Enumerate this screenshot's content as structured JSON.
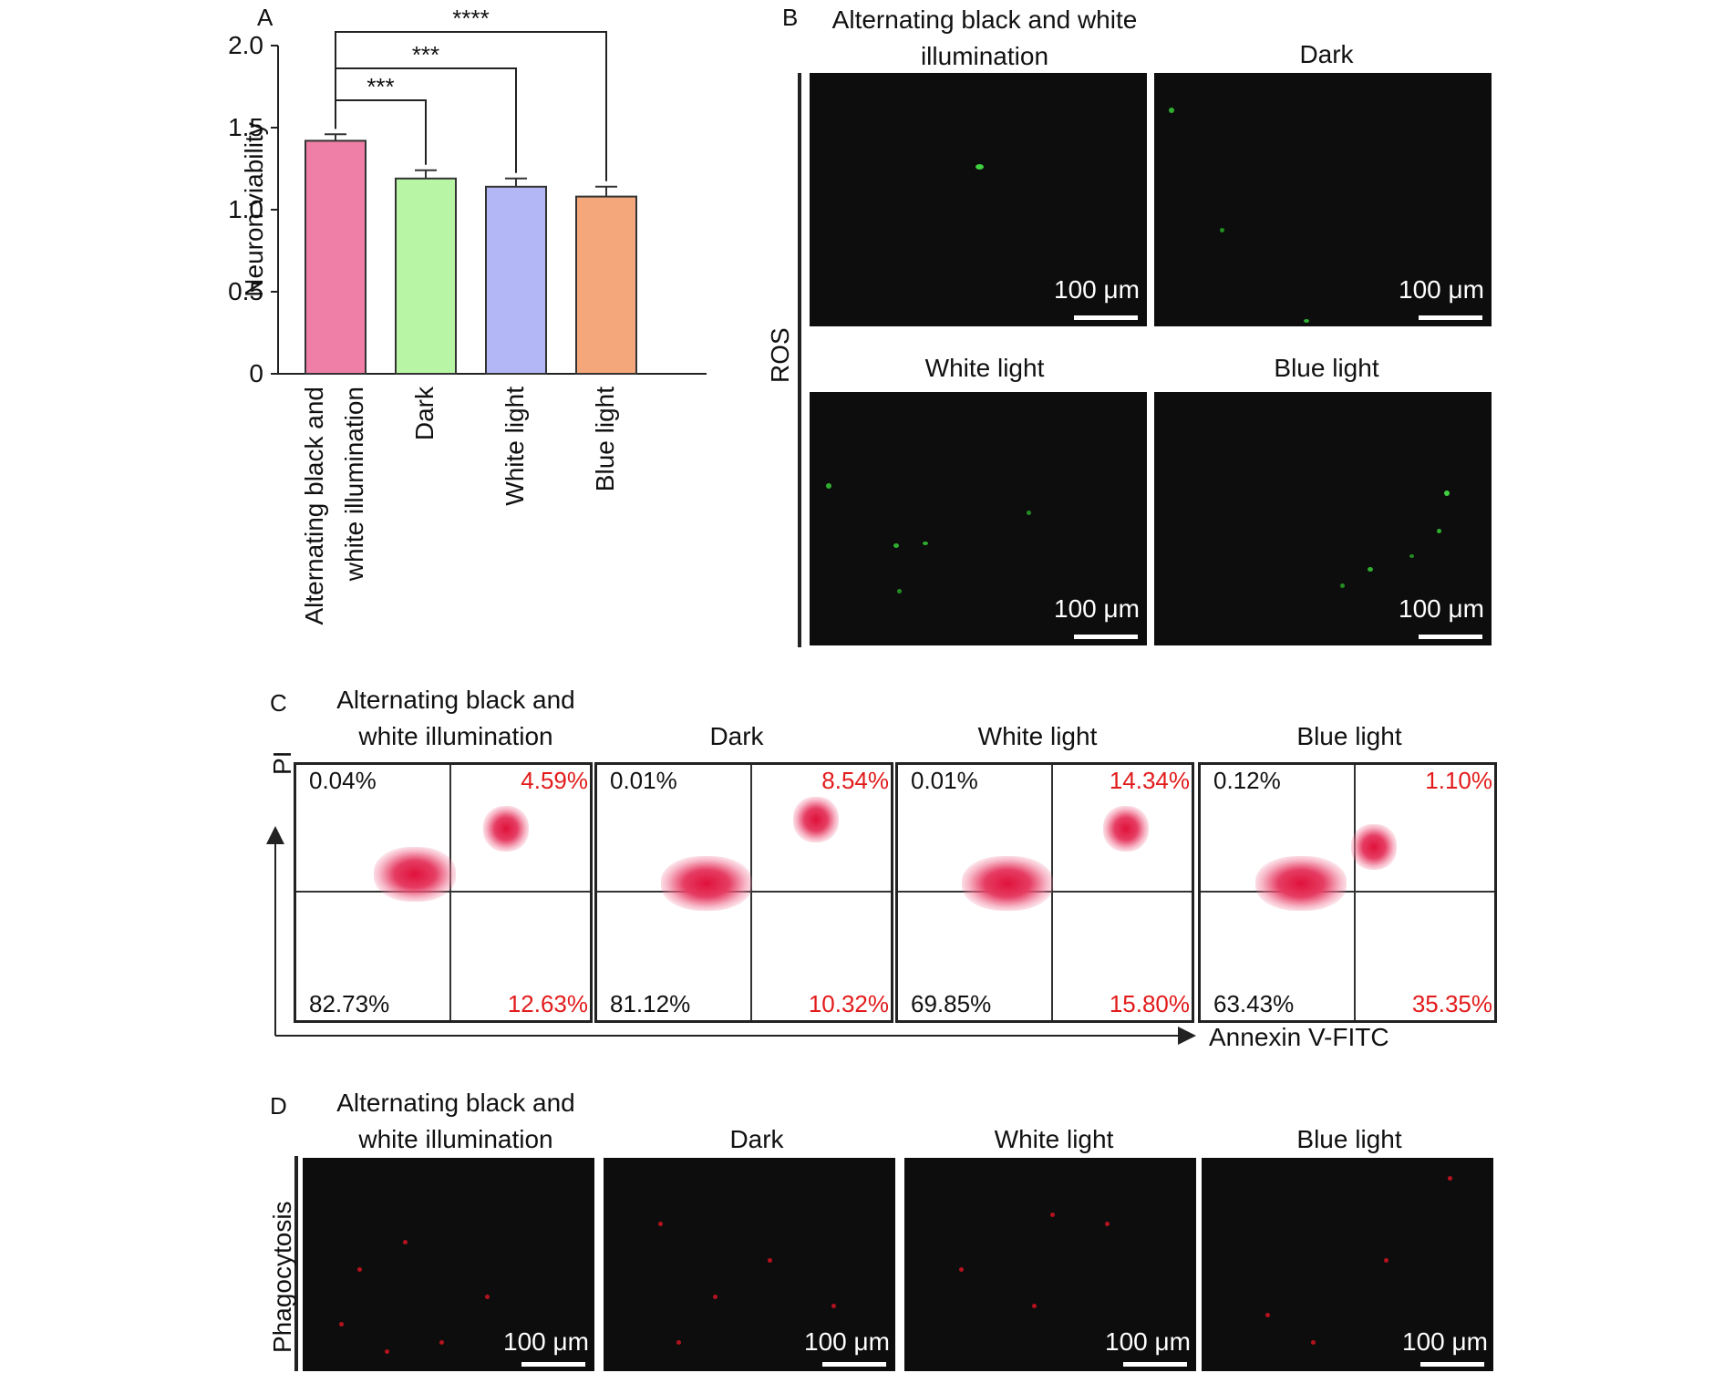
{
  "panels": {
    "A": {
      "label": "A"
    },
    "B": {
      "label": "B",
      "row_label": "ROS",
      "titles": [
        "Alternating black and white illumination",
        "Dark",
        "White light",
        "Blue light"
      ],
      "scale": "100 μm"
    },
    "C": {
      "label": "C",
      "titles": [
        "Alternating black and white illumination",
        "Dark",
        "White light",
        "Blue light"
      ],
      "y_axis": "PI",
      "x_axis": "Annexin V-FITC",
      "quadrants": [
        {
          "ul": "0.04%",
          "ur": "4.59%",
          "ll": "82.73%",
          "lr": "12.63%"
        },
        {
          "ul": "0.01%",
          "ur": "8.54%",
          "ll": "81.12%",
          "lr": "10.32%"
        },
        {
          "ul": "0.01%",
          "ur": "14.34%",
          "ll": "69.85%",
          "lr": "15.80%"
        },
        {
          "ul": "0.12%",
          "ur": "1.10%",
          "ll": "63.43%",
          "lr": "35.35%"
        }
      ]
    },
    "D": {
      "label": "D",
      "row_label": "Phagocytosis",
      "titles": [
        "Alternating black and white illumination",
        "Dark",
        "White light",
        "Blue light"
      ],
      "scale": "100 μm"
    }
  },
  "chart_data": {
    "type": "bar",
    "title": "",
    "xlabel": "",
    "ylabel": "Neuron viability",
    "ylim": [
      0,
      2.0
    ],
    "yticks": [
      "0",
      "0.5",
      "1.0",
      "1.5",
      "2.0"
    ],
    "categories": [
      "Alternating black and white illumination",
      "Dark",
      "White light",
      "Blue light"
    ],
    "values": [
      1.42,
      1.19,
      1.14,
      1.08
    ],
    "errors": [
      0.04,
      0.05,
      0.05,
      0.06
    ],
    "colors": [
      "#f07fa8",
      "#b8f5a4",
      "#b3b7f5",
      "#f5a77c"
    ],
    "significance": [
      {
        "from": 0,
        "to": 1,
        "label": "***"
      },
      {
        "from": 0,
        "to": 2,
        "label": "***"
      },
      {
        "from": 0,
        "to": 3,
        "label": "****"
      }
    ]
  }
}
